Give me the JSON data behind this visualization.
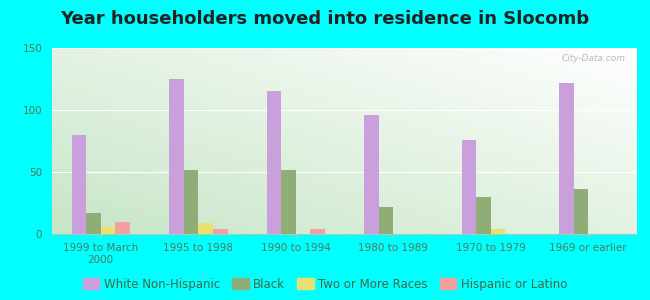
{
  "title": "Year householders moved into residence in Slocomb",
  "categories": [
    "1999 to March\n2000",
    "1995 to 1998",
    "1990 to 1994",
    "1980 to 1989",
    "1970 to 1979",
    "1969 or earlier"
  ],
  "series": {
    "White Non-Hispanic": [
      80,
      125,
      115,
      96,
      76,
      122
    ],
    "Black": [
      17,
      52,
      52,
      22,
      30,
      36
    ],
    "Two or More Races": [
      6,
      9,
      0,
      0,
      4,
      0
    ],
    "Hispanic or Latino": [
      10,
      4,
      4,
      0,
      0,
      0
    ]
  },
  "colors": {
    "White Non-Hispanic": "#c9a0dc",
    "Black": "#8fad76",
    "Two or More Races": "#e8e070",
    "Hispanic or Latino": "#f4a0a0"
  },
  "ylim": [
    0,
    150
  ],
  "yticks": [
    0,
    50,
    100,
    150
  ],
  "background_color": "#00ffff",
  "bar_width": 0.15,
  "title_fontsize": 13,
  "tick_fontsize": 7.5,
  "legend_fontsize": 8.5
}
